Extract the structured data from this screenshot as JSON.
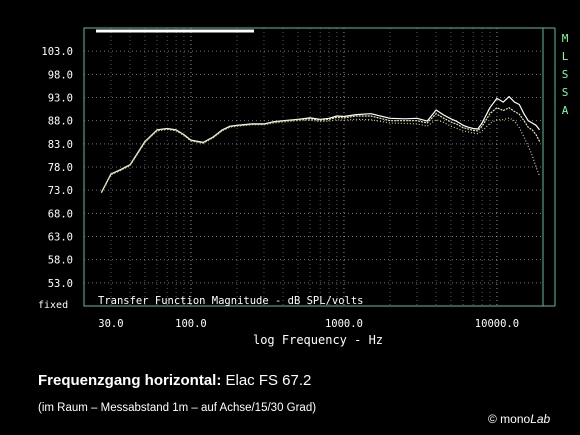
{
  "chart_data": {
    "type": "line",
    "xlabel": "log Frequency - Hz",
    "inner_title": "Transfer Function Magnitude - dB SPL/volts",
    "side_label": "MLSSA",
    "x_scale": "log",
    "xlim": [
      20,
      20000
    ],
    "x_ticks": [
      {
        "value": 30,
        "label": "30.0"
      },
      {
        "value": 100,
        "label": "100.0"
      },
      {
        "value": 1000,
        "label": "1000.0"
      },
      {
        "value": 10000,
        "label": "10000.0"
      }
    ],
    "ylim": [
      48,
      108
    ],
    "y_ticks": [
      {
        "value": 103,
        "label": "103.0"
      },
      {
        "value": 98,
        "label": "98.0"
      },
      {
        "value": 93,
        "label": "93.0"
      },
      {
        "value": 88,
        "label": "88.0"
      },
      {
        "value": 83,
        "label": "83.0"
      },
      {
        "value": 78,
        "label": "78.0"
      },
      {
        "value": 73,
        "label": "73.0"
      },
      {
        "value": 68,
        "label": "68.0"
      },
      {
        "value": 63,
        "label": "63.0"
      },
      {
        "value": 58,
        "label": "58.0"
      },
      {
        "value": 53,
        "label": "53.0"
      }
    ],
    "y_bottom_label": "fixed",
    "grid": true,
    "colors": {
      "background": "#000000",
      "frame": "#4f9e86",
      "grid": "#c8c8c8",
      "series_0deg": "#ffffff",
      "series_15deg": "#e6e6b4",
      "series_30deg": "#d2d282",
      "text": "#ffffff",
      "side_label": "#7fff9f"
    },
    "series": [
      {
        "x": [
          26,
          30,
          35,
          40,
          50,
          60,
          70,
          80,
          90,
          100,
          120,
          140,
          160,
          180,
          200,
          250,
          300,
          350,
          400,
          500,
          600,
          700,
          800,
          900,
          1000,
          1200,
          1500,
          2000,
          2500,
          3000,
          3500,
          4000,
          4500,
          5000,
          5500,
          6000,
          6500,
          7000,
          7500,
          8000,
          9000,
          10000,
          11000,
          12000,
          13000,
          14000,
          15000,
          16000,
          17000,
          18000,
          19000
        ],
        "y": [
          72.5,
          76.5,
          77.5,
          78.5,
          83.5,
          86,
          86.3,
          86,
          85,
          83.8,
          83.3,
          84.5,
          86,
          86.8,
          87,
          87.3,
          87.3,
          87.8,
          88,
          88.3,
          88.6,
          88.3,
          88.5,
          89,
          88.9,
          89.3,
          89.5,
          88.5,
          88.4,
          88.5,
          87.9,
          90.3,
          89.2,
          88.4,
          87.8,
          87,
          86.6,
          86.3,
          86.2,
          87.5,
          90.8,
          92.8,
          92,
          93.2,
          92,
          91.5,
          89.5,
          88,
          87.5,
          87,
          86
        ]
      },
      {
        "x": [
          26,
          30,
          35,
          40,
          50,
          60,
          70,
          80,
          90,
          100,
          120,
          140,
          160,
          180,
          200,
          250,
          300,
          350,
          400,
          500,
          600,
          700,
          800,
          900,
          1000,
          1200,
          1500,
          2000,
          2500,
          3000,
          3500,
          4000,
          4500,
          5000,
          5500,
          6000,
          6500,
          7000,
          7500,
          8000,
          9000,
          10000,
          11000,
          12000,
          13000,
          14000,
          15000,
          16000,
          17000,
          18000,
          19000
        ],
        "y": [
          72.5,
          76.4,
          77.4,
          78.4,
          83.4,
          85.9,
          86.2,
          85.9,
          84.9,
          83.7,
          83.2,
          84.4,
          85.9,
          86.7,
          86.9,
          87.2,
          87.2,
          87.7,
          87.9,
          88.2,
          88.4,
          88.1,
          88.3,
          88.7,
          88.6,
          89,
          89,
          88,
          88,
          88,
          87.5,
          89.5,
          88.5,
          87.7,
          87.2,
          86.5,
          86.2,
          85.9,
          85.8,
          86.8,
          89.5,
          90.8,
          90.2,
          90.8,
          90,
          89.4,
          88,
          86.6,
          86,
          85,
          83.5
        ]
      },
      {
        "x": [
          26,
          30,
          35,
          40,
          50,
          60,
          70,
          80,
          90,
          100,
          120,
          140,
          160,
          180,
          200,
          250,
          300,
          350,
          400,
          500,
          600,
          700,
          800,
          900,
          1000,
          1200,
          1500,
          2000,
          2500,
          3000,
          3500,
          4000,
          4500,
          5000,
          5500,
          6000,
          6500,
          7000,
          7500,
          8000,
          9000,
          10000,
          11000,
          12000,
          13000,
          14000,
          15000,
          16000,
          17000,
          18000,
          19000
        ],
        "y": [
          72.4,
          76.3,
          77.3,
          78.3,
          83.3,
          85.8,
          86.1,
          85.8,
          84.8,
          83.6,
          83.1,
          84.3,
          85.8,
          86.6,
          86.8,
          87.1,
          87.1,
          87.5,
          87.7,
          88,
          88.1,
          87.8,
          87.9,
          88.2,
          88.1,
          88.3,
          88.2,
          87.5,
          87.4,
          87.3,
          86.8,
          88.2,
          87.6,
          86.8,
          86.3,
          85.8,
          85.6,
          85.3,
          85.2,
          85.8,
          87.4,
          88.2,
          88.2,
          88.6,
          88,
          86.5,
          84.5,
          82.5,
          80.5,
          78,
          76
        ]
      }
    ]
  },
  "caption": {
    "title_bold": "Frequenzgang horizontal:",
    "title_rest": "Elac FS 67.2",
    "subtitle": "(im Raum – Messabstand 1m – auf Achse/15/30 Grad)",
    "brand_prefix": "© mono",
    "brand_italic": "Lab"
  }
}
